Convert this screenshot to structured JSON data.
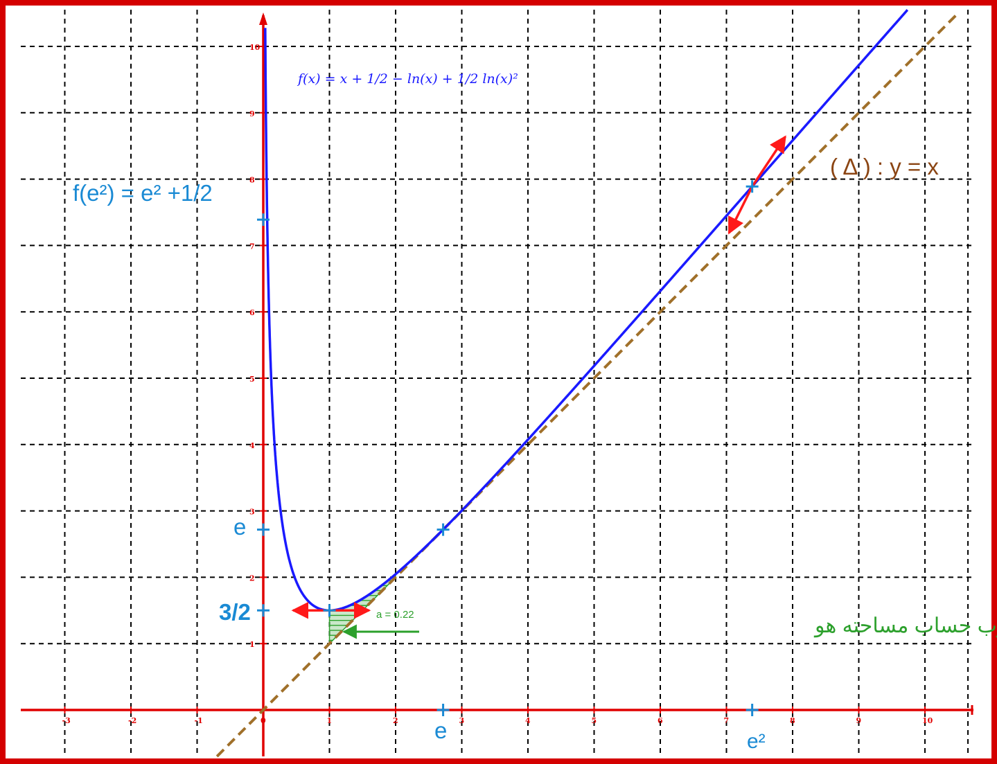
{
  "chart_data": {
    "type": "line",
    "function_label": "f(x) = x + 1/2 − ln(x) + 1/2 ln(x)²",
    "x_ticks": [
      -3,
      -2,
      -1,
      0,
      1,
      2,
      3,
      4,
      5,
      6,
      7,
      8,
      9,
      10
    ],
    "y_ticks": [
      1,
      2,
      3,
      4,
      5,
      6,
      7,
      8,
      9,
      10
    ],
    "xlim": [
      -3.7,
      10.7
    ],
    "ylim": [
      -0.7,
      10.6
    ],
    "grid": true,
    "series": [
      {
        "name": "f(x) = x + 1/2 − ln(x) + 1/2 ln(x)²",
        "color": "#1a1aff",
        "style": "solid",
        "domain": [
          0.001,
          10.5
        ]
      },
      {
        "name": "(Δ) : y = x",
        "color": "#a0702a",
        "style": "dashed",
        "domain": [
          -0.7,
          10.5
        ]
      }
    ],
    "annotations": {
      "f_e2": "f(e²) = e² +1/2",
      "e_y": "e",
      "three_halves": "3/2",
      "e_x": "e",
      "e2_x": "e²",
      "delta": "( Δ ) :  y = x",
      "a_value": "a = 0.22",
      "area_text": "الجزء من المستوى المطلوب حساب مساحته هو"
    },
    "marked_points": [
      {
        "x": 0,
        "y": 7.389
      },
      {
        "x": 0,
        "y": 2.718
      },
      {
        "x": 0,
        "y": 1.5
      },
      {
        "x": 2.718,
        "y": 0
      },
      {
        "x": 7.389,
        "y": 0
      },
      {
        "x": 1,
        "y": 1.5
      },
      {
        "x": 2.718,
        "y": 2.718
      },
      {
        "x": 7.389,
        "y": 7.889
      }
    ],
    "shaded_region": {
      "from": 1,
      "to": 2,
      "between": [
        "f(x)",
        "y = x"
      ]
    }
  },
  "colors": {
    "axes": "#e00000",
    "curve": "#1a1aff",
    "asymptote": "#a0702a",
    "labels": "#1a8ad4",
    "area": "#2ca02c",
    "grid": "#000000"
  }
}
